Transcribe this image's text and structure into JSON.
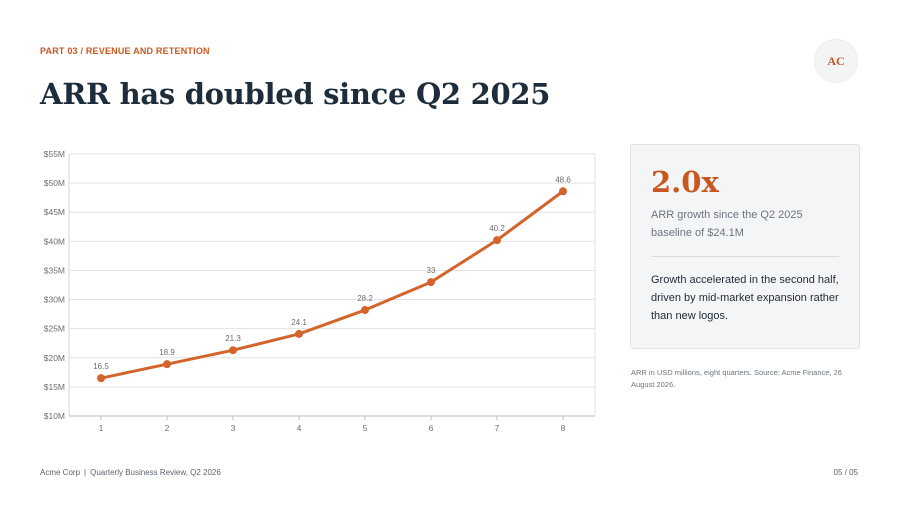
{
  "slide": {
    "eyebrow": "PART 03 / REVENUE AND RETENTION",
    "logo_initials": "AC",
    "title": "ARR has doubled since Q2 2025",
    "page_number": "05 / 05"
  },
  "colors": {
    "accent": "#c8581f",
    "series": "#d2642c",
    "title": "#1e2d3b",
    "muted": "#6b7480",
    "panel_bg": "#f4f5f7",
    "grid": "#e3e3e3"
  },
  "panel": {
    "big_number": "2.0x",
    "big_caption": "ARR growth since the Q2 2025 baseline of $24.1M",
    "insight": "Growth accelerated in the second half, driven by mid-market expansion rather than new logos."
  },
  "note": "ARR in USD millions, eight quarters. Source: Acme Finance, 26 August 2026.",
  "footer": {
    "company": "Acme Corp",
    "separator": "|",
    "report": "Quarterly Business Review, Q2 2026"
  },
  "chart_data": {
    "type": "line",
    "x": [
      1,
      2,
      3,
      4,
      5,
      6,
      7,
      8
    ],
    "series": [
      {
        "values": [
          16.5,
          18.9,
          21.3,
          24.1,
          28.2,
          33,
          40.2,
          48.6
        ],
        "data_labels": [
          "16.5",
          "18.9",
          "21.3",
          "24.1",
          "28.2",
          "33",
          "40.2",
          "48.6"
        ]
      }
    ],
    "ylim": [
      10,
      55
    ],
    "yticks": [
      10,
      15,
      20,
      25,
      30,
      35,
      40,
      45,
      50,
      55
    ],
    "ytick_labels": [
      "$10M",
      "$15M",
      "$20M",
      "$25M",
      "$30M",
      "$35M",
      "$40M",
      "$45M",
      "$50M",
      "$55M"
    ],
    "xtick_labels": [
      "1",
      "2",
      "3",
      "4",
      "5",
      "6",
      "7",
      "8"
    ],
    "title": "",
    "xlabel": "",
    "ylabel": "",
    "grid": true,
    "legend": "none"
  }
}
